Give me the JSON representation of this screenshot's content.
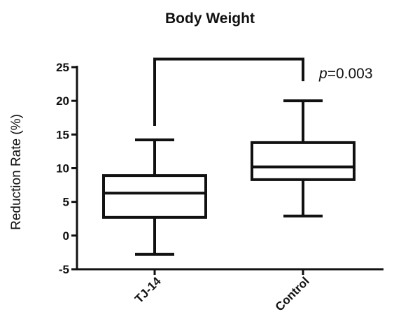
{
  "chart_data": {
    "type": "box",
    "title": "Body Weight",
    "xlabel": "",
    "ylabel": "Reduction Rate (%)",
    "ylim": [
      -5,
      25
    ],
    "yticks": [
      "-5",
      "0",
      "5",
      "10",
      "15",
      "20",
      "25"
    ],
    "categories": [
      "TJ-14",
      "Control"
    ],
    "boxes": [
      {
        "category": "TJ-14",
        "min": -2.8,
        "q1": 2.7,
        "median": 6.3,
        "q3": 8.9,
        "max": 14.2
      },
      {
        "category": "Control",
        "min": 2.9,
        "q1": 8.3,
        "median": 10.2,
        "q3": 13.8,
        "max": 20.0
      }
    ],
    "annotation": {
      "p_prefix": "p",
      "p_value_text": "=0.003",
      "bracket_between": [
        "TJ-14",
        "Control"
      ],
      "bracket_level": 26.2
    },
    "grid": false,
    "legend": "none"
  }
}
